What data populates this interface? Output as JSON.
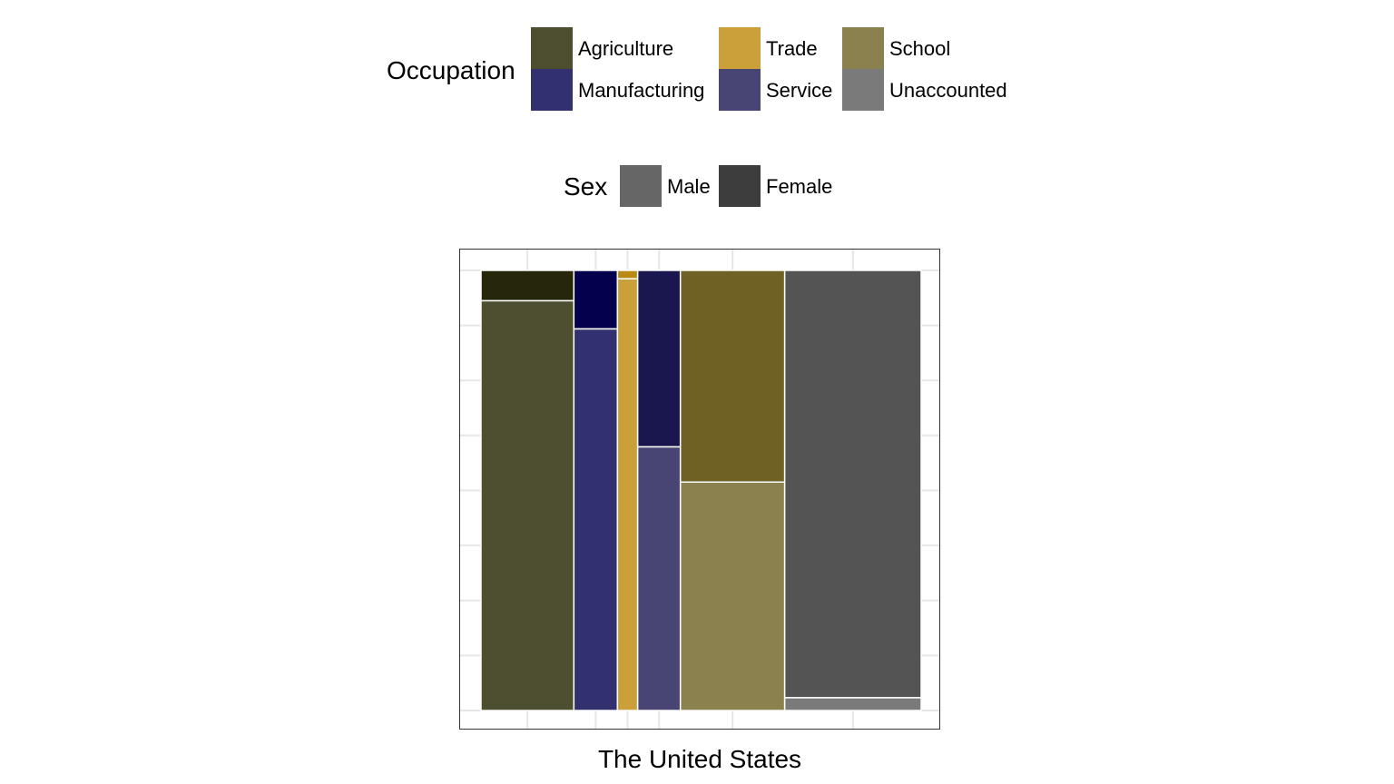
{
  "legend_occupation": {
    "title": "Occupation",
    "items": [
      {
        "label": "Agriculture",
        "color": "#4e4e30"
      },
      {
        "label": "Manufacturing",
        "color": "#33306f"
      },
      {
        "label": "Trade",
        "color": "#cb9f3a"
      },
      {
        "label": "Service",
        "color": "#484575"
      },
      {
        "label": "School",
        "color": "#8b814e"
      },
      {
        "label": "Unaccounted",
        "color": "#7a7a7a"
      }
    ]
  },
  "legend_sex": {
    "title": "Sex",
    "items": [
      {
        "label": "Male",
        "color": "#666666"
      },
      {
        "label": "Female",
        "color": "#3d3d3d"
      }
    ]
  },
  "chart_data": {
    "type": "mosaic",
    "xlabel": "The United States",
    "grid": true,
    "columns": [
      {
        "occupation": "Agriculture",
        "width": 0.211,
        "male": 0.931,
        "female": 0.069,
        "male_color": "#4e4e30",
        "female_color": "#26260a"
      },
      {
        "occupation": "Manufacturing",
        "width": 0.099,
        "male": 0.867,
        "female": 0.133,
        "male_color": "#33306f",
        "female_color": "#04004d"
      },
      {
        "occupation": "Trade",
        "width": 0.046,
        "male": 0.981,
        "female": 0.019,
        "male_color": "#cb9f3a",
        "female_color": "#b88a12"
      },
      {
        "occupation": "Service",
        "width": 0.097,
        "male": 0.599,
        "female": 0.401,
        "male_color": "#484575",
        "female_color": "#19174d"
      },
      {
        "occupation": "School",
        "width": 0.237,
        "male": 0.519,
        "female": 0.481,
        "male_color": "#8b814e",
        "female_color": "#6f6124"
      },
      {
        "occupation": "Unaccounted",
        "width": 0.31,
        "male": 0.029,
        "female": 0.971,
        "male_color": "#7a7a7a",
        "female_color": "#545454"
      }
    ]
  }
}
